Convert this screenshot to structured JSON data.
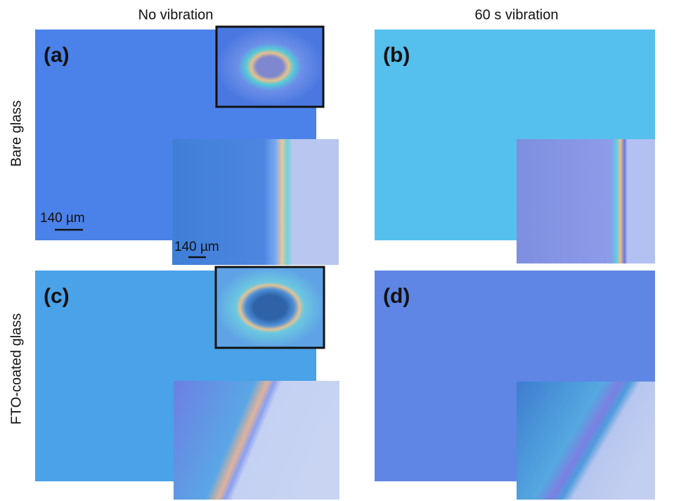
{
  "columns": [
    "No vibration",
    "60 s vibration"
  ],
  "rows": [
    "Bare glass",
    "FTO-coated glass"
  ],
  "panels": [
    {
      "label": "(a)",
      "scale_bar": "140 µm",
      "inset_scale_bar": "140 µm"
    },
    {
      "label": "(b)"
    },
    {
      "label": "(c)"
    },
    {
      "label": "(d)"
    }
  ]
}
